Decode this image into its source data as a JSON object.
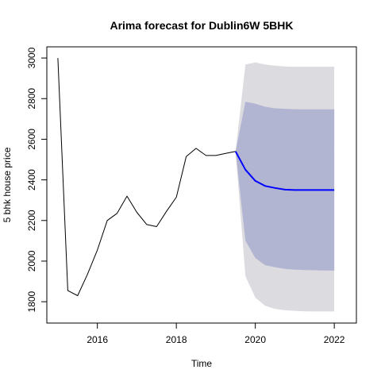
{
  "chart_data": {
    "type": "line",
    "title": "Arima forecast for Dublin6W 5BHK",
    "xlabel": "Time",
    "ylabel": "5 bhk house price",
    "xlim": [
      2014.72,
      2022.56
    ],
    "ylim": [
      1695,
      3055
    ],
    "x_ticks": [
      2016,
      2018,
      2020,
      2022
    ],
    "y_ticks": [
      1800,
      2000,
      2200,
      2400,
      2600,
      2800,
      3000
    ],
    "grid": false,
    "legend": "none",
    "series": [
      {
        "role": "observed",
        "color": "#000000",
        "points": [
          [
            2015.0,
            3000
          ],
          [
            2015.25,
            1855
          ],
          [
            2015.5,
            1830
          ],
          [
            2015.75,
            1935
          ],
          [
            2016.0,
            2055
          ],
          [
            2016.25,
            2200
          ],
          [
            2016.5,
            2235
          ],
          [
            2016.75,
            2320
          ],
          [
            2017.0,
            2240
          ],
          [
            2017.25,
            2180
          ],
          [
            2017.5,
            2170
          ],
          [
            2017.75,
            2245
          ],
          [
            2018.0,
            2315
          ],
          [
            2018.25,
            2515
          ],
          [
            2018.5,
            2555
          ],
          [
            2018.75,
            2520
          ],
          [
            2019.0,
            2520
          ],
          [
            2019.25,
            2530
          ],
          [
            2019.5,
            2540
          ]
        ]
      },
      {
        "role": "forecast",
        "color": "#0000ff",
        "points": [
          [
            2019.5,
            2540
          ],
          [
            2019.75,
            2450
          ],
          [
            2020.0,
            2395
          ],
          [
            2020.25,
            2370
          ],
          [
            2020.5,
            2360
          ],
          [
            2020.75,
            2352
          ],
          [
            2021.0,
            2350
          ],
          [
            2021.25,
            2350
          ],
          [
            2021.5,
            2350
          ],
          [
            2021.75,
            2350
          ],
          [
            2022.0,
            2350
          ]
        ],
        "interval_80": {
          "color": "#b1b5d2",
          "lower": [
            2540,
            2100,
            2015,
            1980,
            1970,
            1962,
            1958,
            1956,
            1955,
            1954,
            1953
          ],
          "upper": [
            2540,
            2785,
            2775,
            2760,
            2752,
            2750,
            2748,
            2747,
            2747,
            2747,
            2747
          ]
        },
        "interval_95": {
          "color": "#dcdce0",
          "lower": [
            2540,
            1925,
            1820,
            1780,
            1765,
            1758,
            1755,
            1753,
            1752,
            1752,
            1752
          ],
          "upper": [
            2540,
            2968,
            2978,
            2968,
            2962,
            2958,
            2957,
            2957,
            2957,
            2957,
            2957
          ]
        }
      }
    ]
  }
}
